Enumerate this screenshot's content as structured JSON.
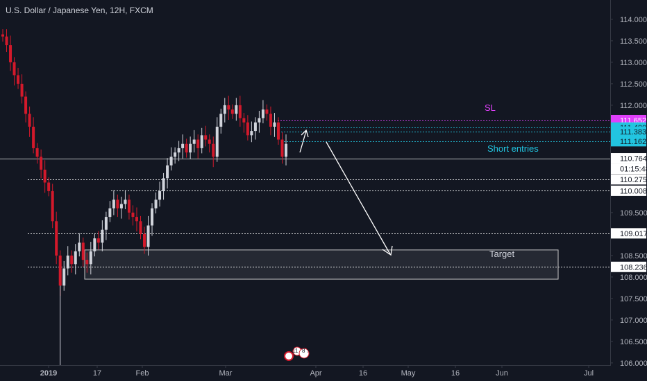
{
  "header": {
    "symbol_title": "U.S. Dollar / Japanese Yen, 12H, FXCM"
  },
  "colors": {
    "background": "#131722",
    "up_candle": "#d1d4dc",
    "down_candle": "#d3192b",
    "sl": "#e040fb",
    "entry": "#22c5e0",
    "level": "#ffffff",
    "axis_text": "#b2b5be",
    "current_price_badge": "#ffffff"
  },
  "chart_data": {
    "type": "candlestick",
    "symbol": "USDJPY",
    "timeframe": "12H",
    "ylim": [
      105.95,
      114.45
    ],
    "y_ticks": [
      "114.000",
      "113.500",
      "113.000",
      "112.500",
      "112.000",
      "109.500",
      "108.500",
      "108.000",
      "107.500",
      "107.000",
      "106.500",
      "106.000"
    ],
    "x_ticks": [
      "2019",
      "17",
      "Feb",
      "Mar",
      "Apr",
      "16",
      "May",
      "16",
      "Jun",
      "Jul"
    ],
    "price_badges": [
      {
        "label": "111.652",
        "role": "sl"
      },
      {
        "label": "111.480",
        "role": "entry"
      },
      {
        "label": "111.383",
        "role": "entry"
      },
      {
        "label": "111.162",
        "role": "entry"
      },
      {
        "label": "110.764",
        "role": "current"
      },
      {
        "label": "01:15:48",
        "role": "countdown"
      },
      {
        "label": "110.275",
        "role": "level"
      },
      {
        "label": "110.008",
        "role": "level"
      },
      {
        "label": "109.017",
        "role": "level"
      },
      {
        "label": "108.236",
        "role": "level"
      }
    ],
    "levels": [
      {
        "price": 111.652,
        "role": "sl"
      },
      {
        "price": 111.48,
        "role": "entry"
      },
      {
        "price": 111.383,
        "role": "entry"
      },
      {
        "price": 111.162,
        "role": "entry"
      },
      {
        "price": 110.764,
        "role": "current"
      },
      {
        "price": 110.275,
        "role": "level"
      },
      {
        "price": 110.008,
        "role": "level"
      },
      {
        "price": 109.017,
        "role": "level"
      },
      {
        "price": 108.236,
        "role": "level"
      }
    ],
    "target_zone": {
      "high": 108.63,
      "low": 107.95,
      "label": "Target"
    },
    "annotations": {
      "sl_label": "SL",
      "entries_label": "Short entries"
    },
    "close_series": [
      113.6,
      113.4,
      113.0,
      112.7,
      112.5,
      112.2,
      111.8,
      111.5,
      111.0,
      110.8,
      110.5,
      110.2,
      110.0,
      109.3,
      108.5,
      107.8,
      108.2,
      108.5,
      108.3,
      108.6,
      108.8,
      108.4,
      108.3,
      108.6,
      108.9,
      108.8,
      109.1,
      109.4,
      109.6,
      109.8,
      109.6,
      109.7,
      109.8,
      109.5,
      109.4,
      109.3,
      109.0,
      108.7,
      109.2,
      109.6,
      109.8,
      110.0,
      110.3,
      110.6,
      110.8,
      110.9,
      111.0,
      111.1,
      110.9,
      111.1,
      111.2,
      111.0,
      111.3,
      111.2,
      111.1,
      110.8,
      111.5,
      111.8,
      112.0,
      111.9,
      111.8,
      112.0,
      111.7,
      111.6,
      111.3,
      111.4,
      111.6,
      111.7,
      111.9,
      111.8,
      111.5,
      111.6,
      111.2,
      110.8,
      111.1
    ]
  }
}
